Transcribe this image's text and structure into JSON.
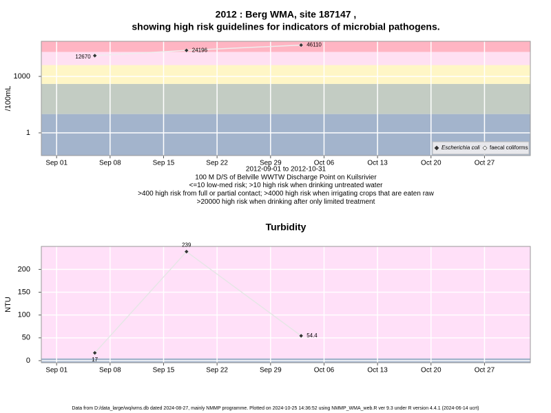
{
  "chart_data": [
    {
      "type": "scatter",
      "title": [
        "2012 : Berg WMA, site 187147 ,",
        "showing high risk guidelines for indicators of microbial pathogens."
      ],
      "y_label": "/100mL",
      "x": [
        "Sep 06",
        "Sep 18",
        "Oct 03"
      ],
      "series": [
        {
          "name": "Escherichia coli",
          "color": "#333333",
          "values": [
            12670,
            24196,
            46110
          ]
        },
        {
          "name": "faecal coliforms",
          "color": "#ffffff",
          "values": [
            null,
            null,
            null
          ]
        }
      ],
      "line_color": "#eeeeee",
      "xlim": [
        "Aug 30",
        "Nov 02"
      ],
      "xticks": [
        "Sep 01",
        "Sep 08",
        "Sep 15",
        "Sep 22",
        "Sep 29",
        "Oct 06",
        "Oct 13",
        "Oct 20",
        "Oct 27"
      ],
      "ylim": [
        0.062,
        73400
      ],
      "yticks": [
        1,
        1000
      ],
      "log_y": true,
      "grid": true,
      "legend": "bottom-right",
      "bands": [
        {
          "from": 0.062,
          "to": 10,
          "color": "#a3b4cc"
        },
        {
          "from": 10,
          "to": 400,
          "color": "#c3ccc3"
        },
        {
          "from": 400,
          "to": 4000,
          "color": "#fff6c6"
        },
        {
          "from": 4000,
          "to": 20000,
          "color": "#ffe0f2"
        },
        {
          "from": 20000,
          "to": 73400,
          "color": "#ffb5c3"
        }
      ],
      "notes": [
        "2012-09-01 to 2012-10-31",
        "100 M D/S of Belville WWTW Discharge Point on Kuilsrivier",
        "<=10 low-med risk; >10 high risk when drinking untreated water",
        ">400 high risk from full or partial contact; >4000 high risk when irrigating crops that are eaten raw",
        ">20000 high risk when drinking after only limited treatment"
      ]
    },
    {
      "type": "scatter",
      "title": [
        "Turbidity"
      ],
      "y_label": "NTU",
      "x": [
        "Sep 06",
        "Sep 18",
        "Oct 03"
      ],
      "series": [
        {
          "name": null,
          "color": "#333333",
          "values": [
            17,
            239,
            54.4
          ]
        }
      ],
      "line_color": "#e6e6e6",
      "xlim": [
        "Aug 30",
        "Nov 02"
      ],
      "xticks": [
        "Sep 01",
        "Sep 08",
        "Sep 15",
        "Sep 22",
        "Sep 29",
        "Oct 06",
        "Oct 13",
        "Oct 20",
        "Oct 27"
      ],
      "ylim": [
        -4.6,
        250.4
      ],
      "yticks": [
        0,
        50,
        100,
        150,
        200
      ],
      "log_y": false,
      "grid": true,
      "bands": [
        {
          "from": -4.6,
          "to": 5,
          "color": "#a3b4cc"
        },
        {
          "from": 5,
          "to": 250.4,
          "color": "#ffe0f8"
        }
      ]
    }
  ],
  "footer": "Data from D:/data_large/wq/wms.db dated 2024-08-27, mainly NMMP programme. Plotted on 2024-10-25 14:36:52 using NMMP_WMA_web.R ver 9.3 under R version 4.4.1 (2024-06-14 ucrt)"
}
